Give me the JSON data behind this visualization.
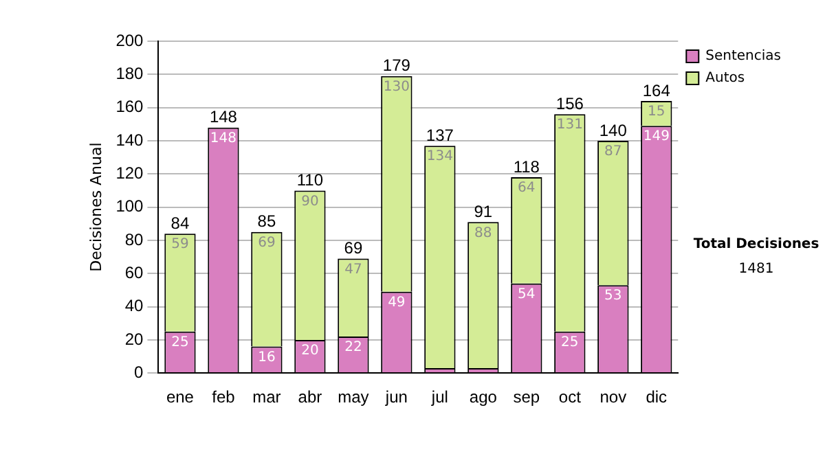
{
  "chart_data": {
    "type": "bar",
    "stacked": true,
    "ylabel": "Decisiones Anual",
    "categories": [
      "ene",
      "feb",
      "mar",
      "abr",
      "may",
      "jun",
      "jul",
      "ago",
      "sep",
      "oct",
      "nov",
      "dic"
    ],
    "series": [
      {
        "name": "Sentencias",
        "color": "#d97fc0",
        "values": [
          25,
          148,
          16,
          20,
          22,
          49,
          3,
          3,
          54,
          25,
          53,
          149
        ],
        "value_labels": [
          "25",
          "148",
          "16",
          "20",
          "22",
          "49",
          null,
          null,
          "54",
          "25",
          "53",
          "149"
        ]
      },
      {
        "name": "Autos",
        "color": "#d4ec96",
        "values": [
          59,
          0,
          69,
          90,
          47,
          130,
          134,
          88,
          64,
          131,
          87,
          15
        ],
        "value_labels": [
          "59",
          null,
          "69",
          "90",
          "47",
          "130",
          "134",
          "88",
          "64",
          "131",
          "87",
          "15"
        ]
      }
    ],
    "totals": [
      "84",
      "148",
      "85",
      "110",
      "69",
      "179",
      "137",
      "91",
      "118",
      "156",
      "140",
      "164"
    ],
    "ylim": [
      0,
      200
    ],
    "yticks": [
      0,
      20,
      40,
      60,
      80,
      100,
      120,
      140,
      160,
      180,
      200
    ],
    "grid": "y",
    "legend": "right",
    "annotations": [
      "Total Decisiones",
      "1481"
    ]
  }
}
